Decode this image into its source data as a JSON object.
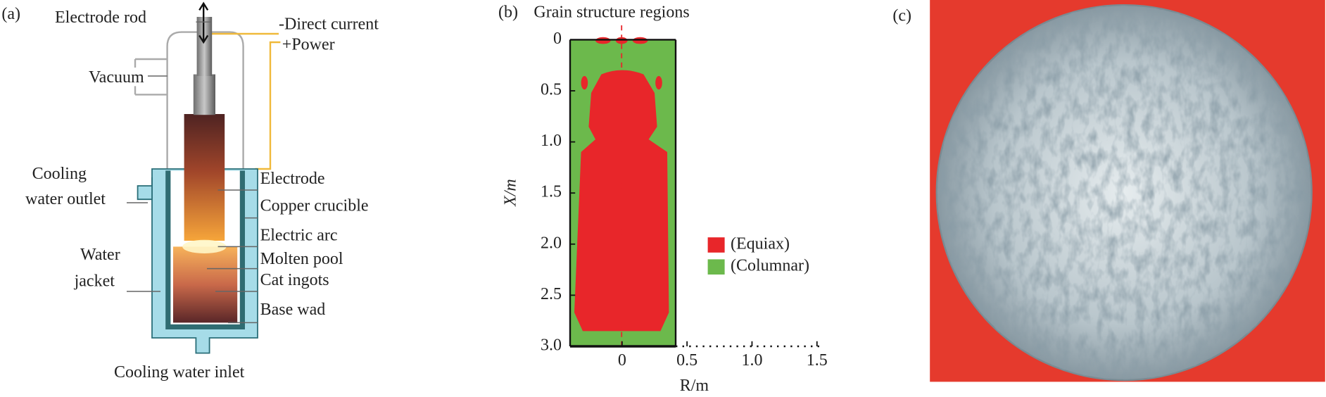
{
  "panels": [
    {
      "label": "(a)",
      "annotations": [
        "Electrode rod",
        "-Direct current",
        "+Power",
        "Vacuum",
        "Cooling",
        "water outlet",
        "Electrode",
        "Copper crucible",
        "Electric arc",
        "Water",
        "jacket",
        "Molten pool",
        "Cat ingots",
        "Base wad",
        "Cooling water inlet"
      ]
    },
    {
      "label": "(b)",
      "title": "Grain structure regions",
      "x_label": "R/m",
      "y_label": "X/m",
      "xlim": [
        -0.4,
        1.55
      ],
      "ylim": [
        0,
        3
      ],
      "xticks": [
        0,
        0.5,
        {
          "value": 1,
          "label": "1.0"
        },
        1.5
      ],
      "yticks": [
        0,
        0.5,
        {
          "value": 1,
          "label": "1.0"
        },
        1.5,
        {
          "value": 2,
          "label": "2.0"
        },
        2.5,
        {
          "value": 3,
          "label": "3.0"
        }
      ],
      "legend": [
        {
          "name": "(Equiax)",
          "color": "#e8262a"
        },
        {
          "name": "(Columnar)",
          "color": "#6cb94c"
        }
      ]
    },
    {
      "label": "(c)"
    }
  ]
}
